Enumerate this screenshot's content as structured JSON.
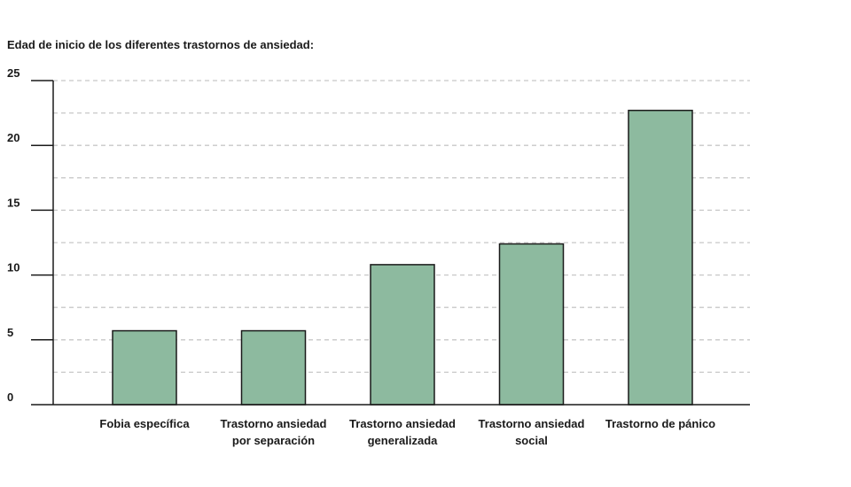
{
  "chart_data": {
    "type": "bar",
    "title": "Edad de inicio de los diferentes trastornos de ansiedad:",
    "xlabel": "",
    "ylabel": "",
    "categories": [
      [
        "Fobia específica"
      ],
      [
        "Trastorno ansiedad",
        "por separación"
      ],
      [
        "Trastorno ansiedad",
        "generalizada"
      ],
      [
        "Trastorno ansiedad",
        "social"
      ],
      [
        "Trastorno de pánico"
      ]
    ],
    "values": [
      5.7,
      5.7,
      10.8,
      12.4,
      22.7
    ],
    "ylim": [
      0,
      25
    ],
    "yticks": [
      0,
      5,
      10,
      15,
      20,
      25
    ],
    "gridlines": [
      2.5,
      5,
      7.5,
      10,
      12.5,
      15,
      17.5,
      20,
      22.5,
      25
    ],
    "grid": true,
    "bar_color": "#8dba9f",
    "bar_stroke": "#1a1a1a"
  }
}
